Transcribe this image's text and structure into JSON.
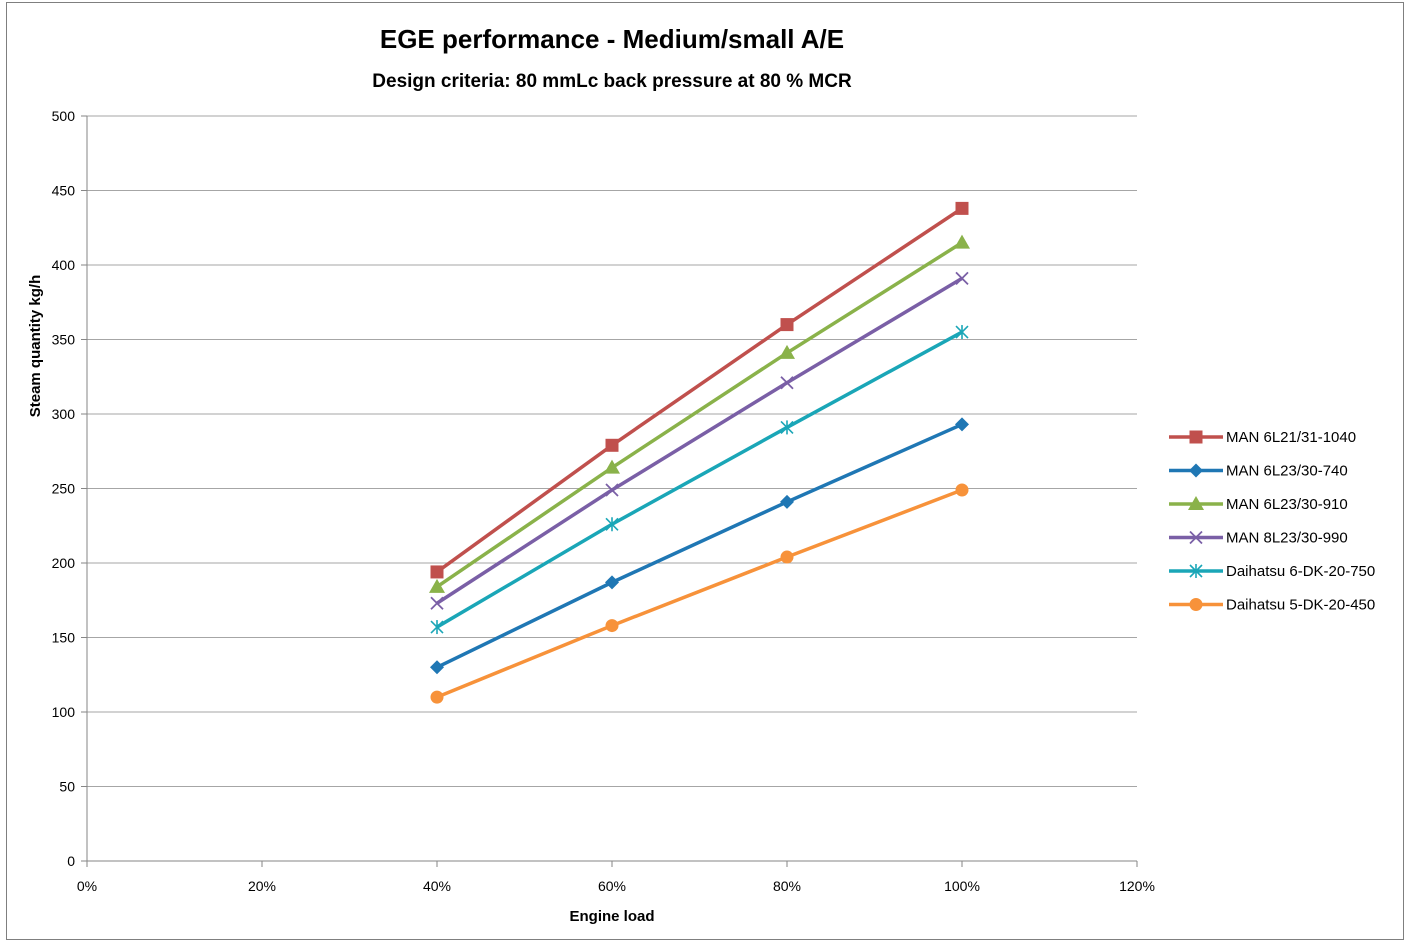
{
  "chart_data": {
    "type": "line",
    "title": "EGE performance - Medium/small A/E",
    "subtitle": "Design criteria: 80 mmLc back pressure at 80 % MCR",
    "xlabel": "Engine load",
    "ylabel": "Steam quantity kg/h",
    "x_unit": "%",
    "xlim": [
      0,
      120
    ],
    "ylim": [
      0,
      500
    ],
    "x_ticks": [
      0,
      20,
      40,
      60,
      80,
      100,
      120
    ],
    "x_tick_labels": [
      "0%",
      "20%",
      "40%",
      "60%",
      "80%",
      "100%",
      "120%"
    ],
    "y_ticks": [
      0,
      50,
      100,
      150,
      200,
      250,
      300,
      350,
      400,
      450,
      500
    ],
    "y_tick_labels": [
      "0",
      "50",
      "100",
      "150",
      "200",
      "250",
      "300",
      "350",
      "400",
      "450",
      "500"
    ],
    "grid": "horizontal",
    "legend_position": "right",
    "x": [
      40,
      60,
      80,
      100
    ],
    "series": [
      {
        "name": "MAN 6L21/31-1040",
        "values": [
          194,
          279,
          360,
          438
        ],
        "color": "#c0504d",
        "marker": "square"
      },
      {
        "name": "MAN 6L23/30-740",
        "values": [
          130,
          187,
          241,
          293
        ],
        "color": "#1f77b4",
        "marker": "diamond"
      },
      {
        "name": "MAN 6L23/30-910",
        "values": [
          184,
          264,
          341,
          415
        ],
        "color": "#8ab24a",
        "marker": "triangle"
      },
      {
        "name": "MAN 8L23/30-990",
        "values": [
          173,
          249,
          321,
          391
        ],
        "color": "#7a5fa6",
        "marker": "x"
      },
      {
        "name": "Daihatsu 6-DK-20-750",
        "values": [
          157,
          226,
          291,
          355
        ],
        "color": "#1aa6b7",
        "marker": "star"
      },
      {
        "name": "Daihatsu 5-DK-20-450",
        "values": [
          110,
          158,
          204,
          249
        ],
        "color": "#f7923a",
        "marker": "circle"
      }
    ]
  }
}
